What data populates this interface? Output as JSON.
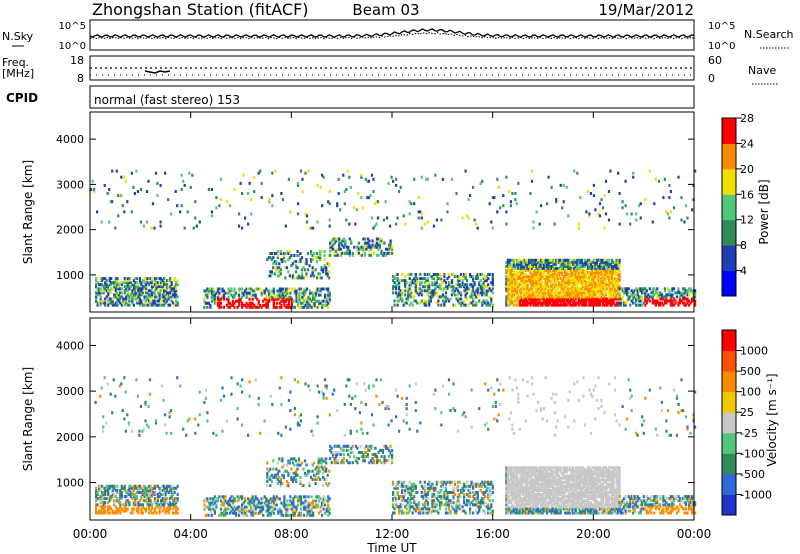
{
  "header": {
    "station": "Zhongshan Station (fitACF)",
    "beam": "Beam 03",
    "date": "19/Mar/2012"
  },
  "top_panels": {
    "nsky_label": "N.Sky",
    "nsky_ticks": [
      "10^5",
      "10^0"
    ],
    "nsearch_label": "N.Search",
    "nsearch_ticks": [
      "10^5",
      "10^0"
    ],
    "freq_label": "Freq.",
    "freq_unit": "[MHz]",
    "freq_ticks": [
      "18",
      "8"
    ],
    "nave_label": "Nave",
    "nave_ticks": [
      "60",
      "0"
    ],
    "cpid_label": "CPID",
    "cpid_text": "normal (fast stereo) 153"
  },
  "chart_data": [
    {
      "type": "heatmap",
      "name": "power",
      "title": "",
      "xlabel": "Time UT",
      "ylabel": "Slant Range [km]",
      "x_ticks": [
        "00:00",
        "04:00",
        "08:00",
        "12:00",
        "16:00",
        "20:00",
        "00:00"
      ],
      "xlim_hours": [
        0,
        24
      ],
      "y_ticks": [
        1000,
        2000,
        3000,
        4000
      ],
      "ylim_km": [
        180,
        4600
      ],
      "colorbar": {
        "label": "Power [dB]",
        "ticks": [
          4,
          8,
          12,
          16,
          20,
          24,
          28
        ],
        "range": [
          0,
          30
        ],
        "colors": [
          "#0000ff",
          "#1f3fb4",
          "#2f8c5a",
          "#50c878",
          "#f0e000",
          "#ff8c00",
          "#ff0000"
        ]
      }
    },
    {
      "type": "heatmap",
      "name": "velocity",
      "title": "",
      "xlabel": "Time UT",
      "ylabel": "Slant Range [km]",
      "x_ticks": [
        "00:00",
        "04:00",
        "08:00",
        "12:00",
        "16:00",
        "20:00",
        "00:00"
      ],
      "xlim_hours": [
        0,
        24
      ],
      "y_ticks": [
        1000,
        2000,
        3000,
        4000
      ],
      "ylim_km": [
        180,
        4600
      ],
      "colorbar": {
        "label": "Velocity [m s⁻¹]",
        "ticks": [
          "1000",
          "500",
          "100",
          "25",
          "-25",
          "-100",
          "-500",
          "-1000"
        ],
        "colors": [
          "#2233cc",
          "#2f6ad8",
          "#2f8c5a",
          "#50c878",
          "#c8c8c8",
          "#f0c800",
          "#ff8c00",
          "#ff5000",
          "#ff0000"
        ]
      }
    }
  ],
  "colors": {
    "ground_scatter": "#c8c8c8"
  }
}
